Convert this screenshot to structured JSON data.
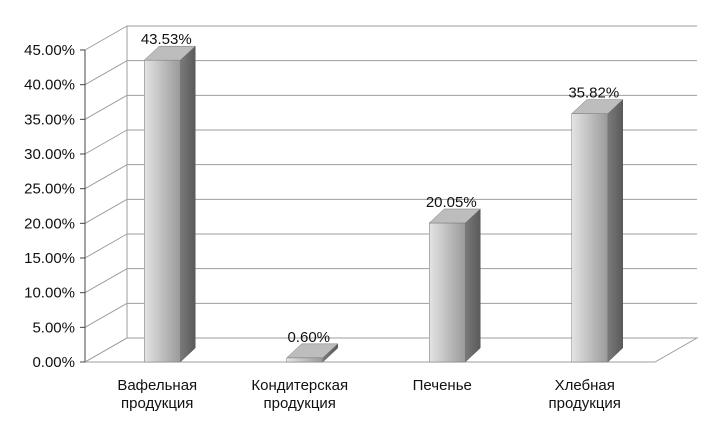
{
  "chart_data": {
    "type": "bar",
    "style": "3d-column",
    "categories": [
      [
        "Вафельная",
        "продукция"
      ],
      [
        "Кондитерская",
        "продукция"
      ],
      [
        "Печенье"
      ],
      [
        "Хлебная",
        "продукция"
      ]
    ],
    "values": [
      43.53,
      0.6,
      20.05,
      35.82
    ],
    "data_labels": [
      "43.53%",
      "0.60%",
      "20.05%",
      "35.82%"
    ],
    "ylim": [
      0,
      45
    ],
    "yticks": [
      0,
      5,
      10,
      15,
      20,
      25,
      30,
      35,
      40,
      45
    ],
    "ytick_labels": [
      "0.00%",
      "5.00%",
      "10.00%",
      "15.00%",
      "20.00%",
      "25.00%",
      "30.00%",
      "35.00%",
      "40.00%",
      "45.00%"
    ],
    "grid": true,
    "legend": "none",
    "colors": {
      "bar_front_light": "#e4e4e4",
      "bar_front_dark": "#9a9a9a",
      "bar_side": "#6e6e6e",
      "bar_top": "#bdbdbd",
      "grid": "#9e9e9e",
      "text": "#111111"
    }
  }
}
